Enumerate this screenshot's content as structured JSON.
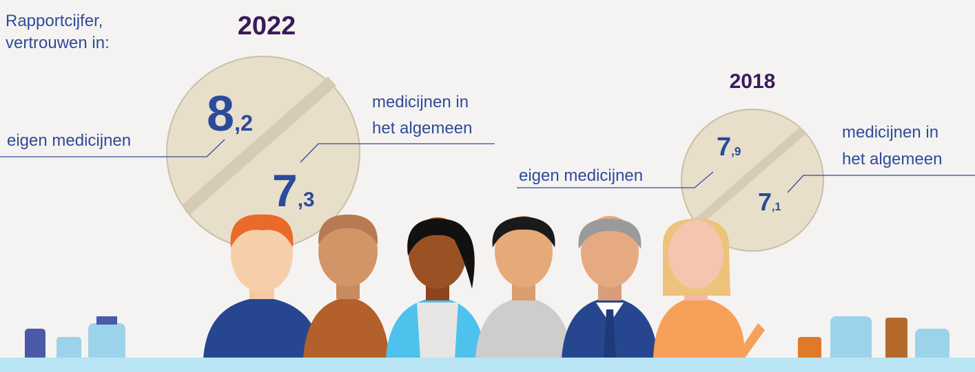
{
  "header": {
    "title_lines": [
      "Rapportcijfer,",
      "vertrouwen in:"
    ]
  },
  "panels": [
    {
      "year": "2022",
      "own": {
        "label": "eigen medicijnen",
        "score": "8,2"
      },
      "general": {
        "label_lines": [
          "medicijnen in",
          "het algemeen"
        ],
        "score": "7,3"
      }
    },
    {
      "year": "2018",
      "own": {
        "label": "eigen medicijnen",
        "score": "7,9"
      },
      "general": {
        "label_lines": [
          "medicijnen in",
          "het algemeen"
        ],
        "score": "7,1"
      }
    }
  ]
}
